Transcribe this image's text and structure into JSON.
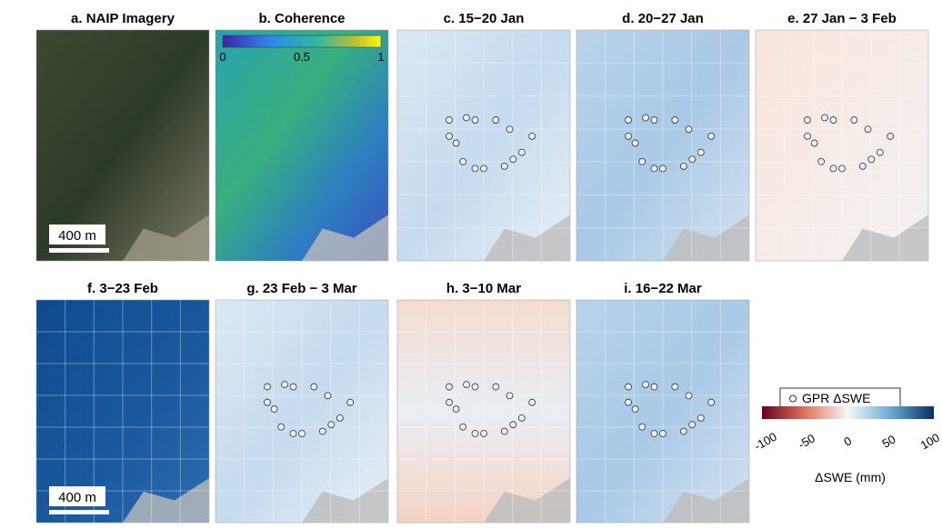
{
  "panels": [
    {
      "title": "a. NAIP Imagery",
      "scale_bar": "400 m"
    },
    {
      "title": "b. Coherence",
      "colorbar_ticks": [
        0,
        0.5,
        1
      ]
    },
    {
      "title": "c. 15−20 Jan"
    },
    {
      "title": "d. 20−27 Jan"
    },
    {
      "title": "e. 27 Jan − 3 Feb"
    },
    {
      "title": "f. 3−23 Feb",
      "scale_bar": "400 m"
    },
    {
      "title": "g. 23 Feb − 3 Mar"
    },
    {
      "title": "h. 3−10 Mar"
    },
    {
      "title": "i. 16−22 Mar"
    }
  ],
  "legend": {
    "label": "GPR ΔSWE"
  },
  "colorbar": {
    "ticks": [
      -100,
      -50,
      0,
      50,
      100
    ],
    "label": "ΔSWE (mm)"
  }
}
